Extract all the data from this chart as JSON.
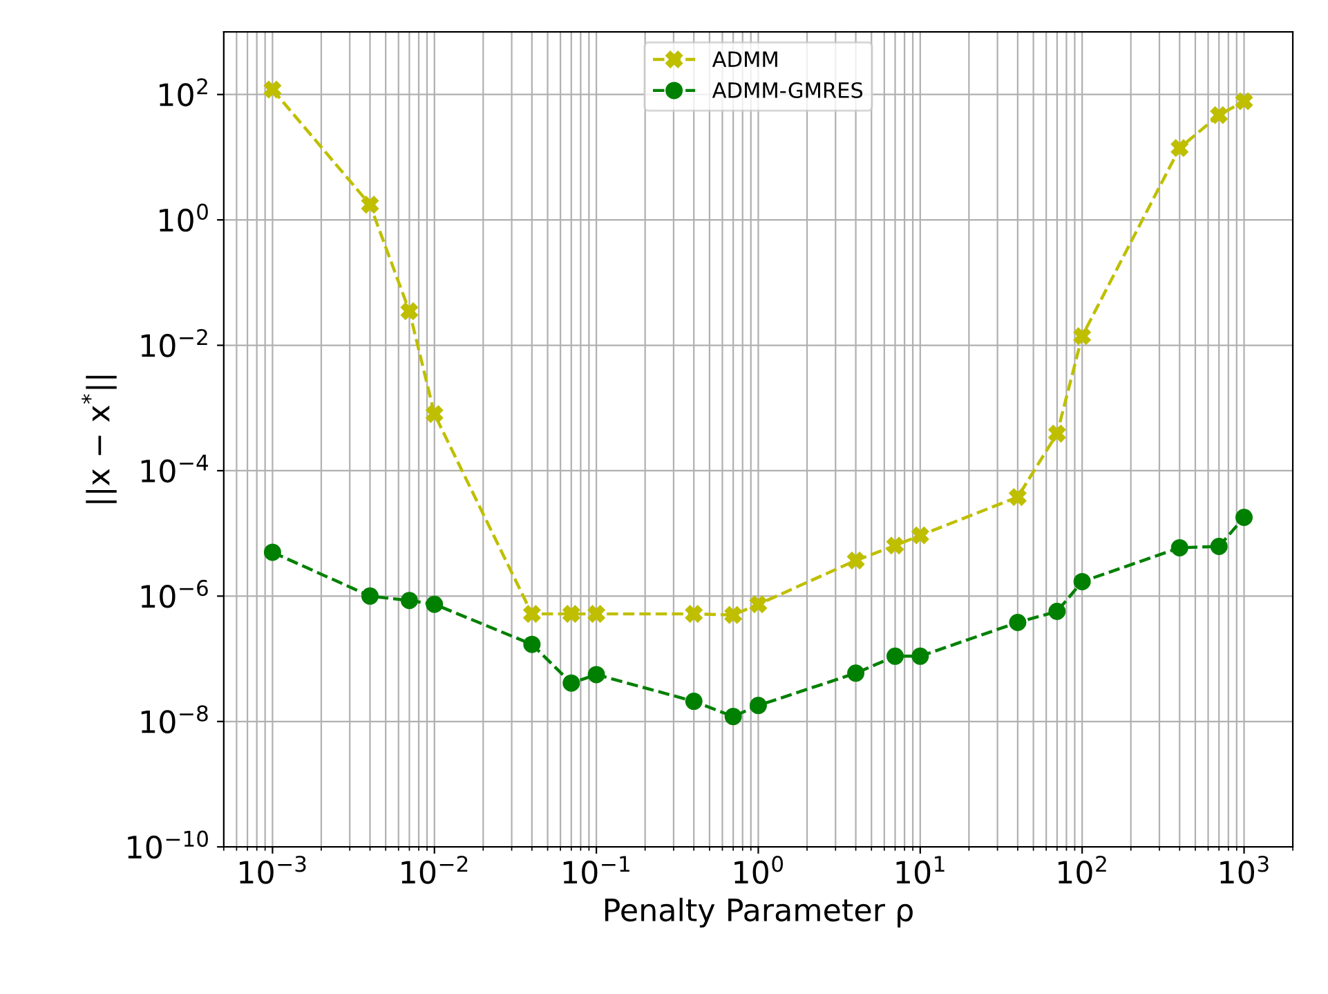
{
  "chart_data": {
    "type": "line",
    "xlabel": "Penalty Parameter ρ",
    "ylabel": "||x − x$^{*}$||",
    "log": "xy",
    "grid": true,
    "legend": "top",
    "line_style": "dashed",
    "x": [
      0.001,
      0.004,
      0.007,
      0.01,
      0.04,
      0.07,
      0.1,
      0.4,
      0.7,
      1,
      4,
      7,
      10,
      40,
      70,
      100,
      400,
      700,
      1000
    ],
    "series": [
      {
        "name": "ADMM",
        "color": "#bfbf00",
        "marker": "cross",
        "values": [
          120,
          1.75,
          0.035,
          0.0008,
          5.2e-07,
          5.2e-07,
          5.2e-07,
          5.2e-07,
          5e-07,
          7.4e-07,
          3.7e-06,
          6.4e-06,
          9.3e-06,
          3.8e-05,
          0.00039,
          0.014,
          14,
          47,
          78
        ]
      },
      {
        "name": "ADMM-GMRES",
        "color": "#008000",
        "marker": "circle",
        "values": [
          5e-06,
          1e-06,
          8.5e-07,
          7.4e-07,
          1.7e-07,
          4.1e-08,
          5.6e-08,
          2.1e-08,
          1.2e-08,
          1.8e-08,
          5.9e-08,
          1.1e-07,
          1.1e-07,
          3.8e-07,
          5.7e-07,
          1.7e-06,
          5.9e-06,
          6.2e-06,
          1.8e-05
        ]
      }
    ],
    "xlim": [
      0.0005,
      2000
    ],
    "ylim": [
      1e-10,
      1000
    ],
    "xticks": [
      {
        "value": 0.0005,
        "label": null
      },
      {
        "value": 0.0006,
        "label": null
      },
      {
        "value": 0.0007,
        "label": null
      },
      {
        "value": 0.0008,
        "label": null
      },
      {
        "value": 0.0009,
        "label": null
      },
      {
        "value": 0.001,
        "label": "10$^{−3}$"
      },
      {
        "value": 0.002,
        "label": null
      },
      {
        "value": 0.003,
        "label": null
      },
      {
        "value": 0.004,
        "label": null
      },
      {
        "value": 0.005,
        "label": null
      },
      {
        "value": 0.006,
        "label": null
      },
      {
        "value": 0.007,
        "label": null
      },
      {
        "value": 0.008,
        "label": null
      },
      {
        "value": 0.009,
        "label": null
      },
      {
        "value": 0.01,
        "label": "10$^{−2}$"
      },
      {
        "value": 0.02,
        "label": null
      },
      {
        "value": 0.03,
        "label": null
      },
      {
        "value": 0.04,
        "label": null
      },
      {
        "value": 0.05,
        "label": null
      },
      {
        "value": 0.06,
        "label": null
      },
      {
        "value": 0.07,
        "label": null
      },
      {
        "value": 0.08,
        "label": null
      },
      {
        "value": 0.09,
        "label": null
      },
      {
        "value": 0.1,
        "label": "10$^{−1}$"
      },
      {
        "value": 0.2,
        "label": null
      },
      {
        "value": 0.3,
        "label": null
      },
      {
        "value": 0.4,
        "label": null
      },
      {
        "value": 0.5,
        "label": null
      },
      {
        "value": 0.6,
        "label": null
      },
      {
        "value": 0.7,
        "label": null
      },
      {
        "value": 0.8,
        "label": null
      },
      {
        "value": 0.9,
        "label": null
      },
      {
        "value": 1,
        "label": "10$^{0}$"
      },
      {
        "value": 2,
        "label": null
      },
      {
        "value": 3,
        "label": null
      },
      {
        "value": 4,
        "label": null
      },
      {
        "value": 5,
        "label": null
      },
      {
        "value": 6,
        "label": null
      },
      {
        "value": 7,
        "label": null
      },
      {
        "value": 8,
        "label": null
      },
      {
        "value": 9,
        "label": null
      },
      {
        "value": 10,
        "label": "10$^{1}$"
      },
      {
        "value": 20,
        "label": null
      },
      {
        "value": 30,
        "label": null
      },
      {
        "value": 40,
        "label": null
      },
      {
        "value": 50,
        "label": null
      },
      {
        "value": 60,
        "label": null
      },
      {
        "value": 70,
        "label": null
      },
      {
        "value": 80,
        "label": null
      },
      {
        "value": 90,
        "label": null
      },
      {
        "value": 100,
        "label": "10$^{2}$"
      },
      {
        "value": 200,
        "label": null
      },
      {
        "value": 300,
        "label": null
      },
      {
        "value": 400,
        "label": null
      },
      {
        "value": 500,
        "label": null
      },
      {
        "value": 600,
        "label": null
      },
      {
        "value": 700,
        "label": null
      },
      {
        "value": 800,
        "label": null
      },
      {
        "value": 900,
        "label": null
      },
      {
        "value": 1000,
        "label": "10$^{3}$"
      },
      {
        "value": 2000,
        "label": null
      }
    ],
    "yticks": [
      {
        "value": 1e-10,
        "label": "10$^{−10}$"
      },
      {
        "value": 1e-08,
        "label": "10$^{−8}$"
      },
      {
        "value": 1e-06,
        "label": "10$^{−6}$"
      },
      {
        "value": 0.0001,
        "label": "10$^{−4}$"
      },
      {
        "value": 0.01,
        "label": "10$^{−2}$"
      },
      {
        "value": 1,
        "label": "10$^{0}$"
      },
      {
        "value": 100,
        "label": "10$^{2}$"
      }
    ]
  }
}
